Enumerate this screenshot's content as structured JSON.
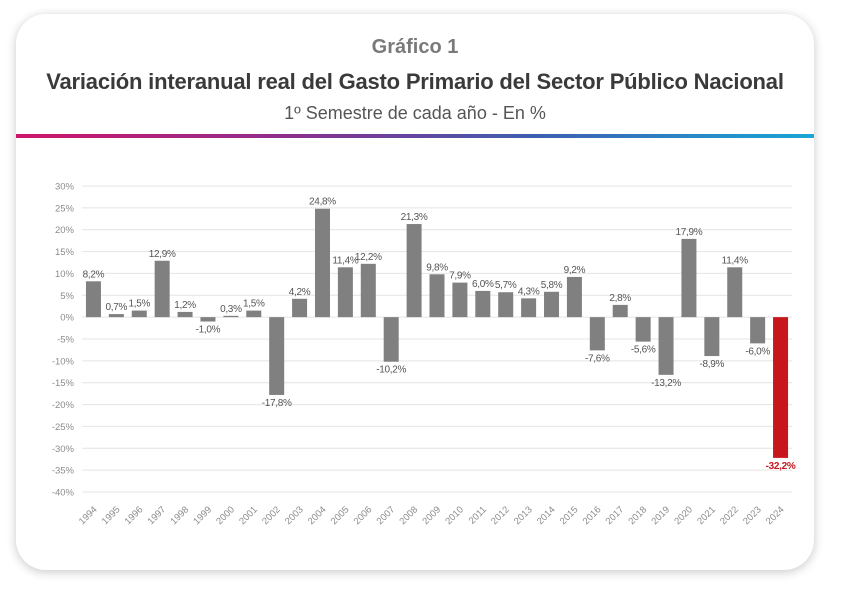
{
  "header": {
    "kicker": "Gráfico 1",
    "title": "Variación interanual real del Gasto Primario del Sector Público Nacional",
    "subtitle": "1º Semestre de cada año - En %"
  },
  "colors": {
    "bar": "#808080",
    "highlight": "#c8161d",
    "grid": "#e4e4e4",
    "tick": "#8c8c8c",
    "label": "#555555"
  },
  "chart_data": {
    "type": "bar",
    "title": "",
    "xlabel": "",
    "ylabel": "",
    "ylim": [
      -40,
      30
    ],
    "yticks": [
      "30%",
      "25%",
      "20%",
      "15%",
      "10%",
      "5%",
      "0%",
      "-5%",
      "-10%",
      "-15%",
      "-20%",
      "-25%",
      "-30%",
      "-35%",
      "-40%"
    ],
    "grid": true,
    "legend": "none",
    "categories": [
      "1994",
      "1995",
      "1996",
      "1997",
      "1998",
      "1999",
      "2000",
      "2001",
      "2002",
      "2003",
      "2004",
      "2005",
      "2006",
      "2007",
      "2008",
      "2009",
      "2010",
      "2011",
      "2012",
      "2013",
      "2014",
      "2015",
      "2016",
      "2017",
      "2018",
      "2019",
      "2020",
      "2021",
      "2022",
      "2023",
      "2024"
    ],
    "values": [
      8.2,
      0.7,
      1.5,
      12.9,
      1.2,
      -1.0,
      0.3,
      1.5,
      -17.8,
      4.2,
      24.8,
      11.4,
      12.2,
      -10.2,
      21.3,
      9.8,
      7.9,
      6.0,
      5.7,
      4.3,
      5.8,
      9.2,
      -7.6,
      2.8,
      -5.6,
      -13.2,
      17.9,
      -8.9,
      11.4,
      -6.0,
      -32.2
    ],
    "labels": [
      "8,2%",
      "0,7%",
      "1,5%",
      "12,9%",
      "1,2%",
      "-1,0%",
      "0,3%",
      "1,5%",
      "-17,8%",
      "4,2%",
      "24,8%",
      "11,4%",
      "12,2%",
      "-10,2%",
      "21,3%",
      "9,8%",
      "7,9%",
      "6,0%",
      "5,7%",
      "4,3%",
      "5,8%",
      "9,2%",
      "-7,6%",
      "2,8%",
      "-5,6%",
      "-13,2%",
      "17,9%",
      "-8,9%",
      "11,4%",
      "-6,0%",
      "-32,2%"
    ],
    "highlight_index": 30
  }
}
